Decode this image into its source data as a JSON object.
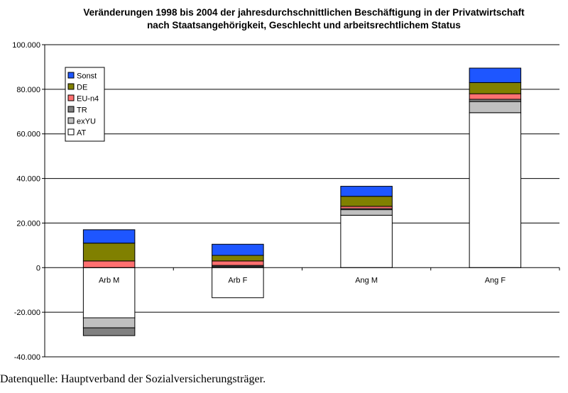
{
  "chart_data": {
    "type": "bar",
    "stacked": true,
    "title_lines": [
      "Veränderungen 1998 bis 2004 der jahresdurchschnittlichen Beschäftigung in der Privatwirtschaft",
      "nach Staatsangehörigkeit, Geschlecht und arbeitsrechtlichem Status"
    ],
    "categories": [
      "Arb M",
      "Arb F",
      "Ang M",
      "Ang F"
    ],
    "series": [
      {
        "name": "AT",
        "color": "#ffffff",
        "values": [
          -22500,
          -13500,
          23500,
          69500
        ]
      },
      {
        "name": "exYU",
        "color": "#c0c0c0",
        "values": [
          -4500,
          500,
          2500,
          5000
        ]
      },
      {
        "name": "TR",
        "color": "#808080",
        "values": [
          -3500,
          500,
          500,
          1000
        ]
      },
      {
        "name": "EU-n4",
        "color": "#ff7070",
        "values": [
          3000,
          2000,
          1000,
          2500
        ]
      },
      {
        "name": "DE",
        "color": "#808000",
        "values": [
          8000,
          2500,
          4500,
          5000
        ]
      },
      {
        "name": "Sonst",
        "color": "#1e56ff",
        "values": [
          6000,
          5000,
          4500,
          6500
        ]
      }
    ],
    "ylim": [
      -40000,
      100000
    ],
    "y_ticks": [
      -40000,
      -20000,
      0,
      20000,
      40000,
      60000,
      80000,
      100000
    ],
    "y_tick_labels": [
      "-40.000",
      "-20.000",
      "0",
      "20.000",
      "40.000",
      "60.000",
      "80.000",
      "100.000"
    ],
    "grid": true,
    "legend_placement": "top-left",
    "legend_order": [
      "Sonst",
      "DE",
      "EU-n4",
      "TR",
      "exYU",
      "AT"
    ],
    "xlabel": "",
    "ylabel": ""
  },
  "source_note": "Datenquelle: Hauptverband der Sozialversicherungsträger."
}
